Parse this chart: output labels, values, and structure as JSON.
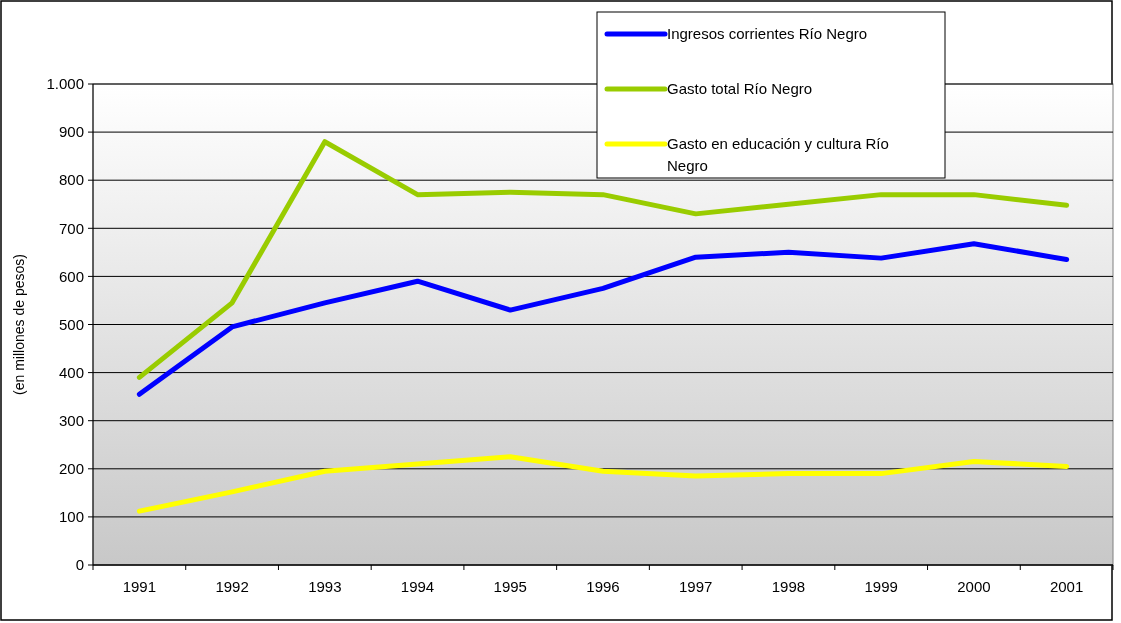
{
  "chart_data": {
    "type": "line",
    "ylabel": "(en millones de pesos)",
    "categories": [
      "1991",
      "1992",
      "1993",
      "1994",
      "1995",
      "1996",
      "1997",
      "1998",
      "1999",
      "2000",
      "2001"
    ],
    "series": [
      {
        "name": "Ingresos corrientes Río Negro",
        "color": "#0000ff",
        "values": [
          355,
          495,
          545,
          590,
          530,
          575,
          640,
          650,
          638,
          668,
          635
        ]
      },
      {
        "name": "Gasto total Río Negro",
        "color": "#99cc00",
        "values": [
          390,
          545,
          880,
          770,
          775,
          770,
          730,
          750,
          770,
          770,
          748
        ]
      },
      {
        "name": "Gasto en educación y cultura Río Negro",
        "color": "#ffff00",
        "values": [
          112,
          152,
          195,
          210,
          225,
          195,
          185,
          190,
          190,
          215,
          205
        ]
      }
    ],
    "ylim": [
      0,
      1000
    ],
    "yticks": [
      0,
      100,
      200,
      300,
      400,
      500,
      600,
      700,
      800,
      900,
      {
        "value": 1000,
        "label": "1.000"
      }
    ],
    "grid": "y",
    "legend": "top right",
    "marker": "none",
    "line_style": "solid"
  }
}
